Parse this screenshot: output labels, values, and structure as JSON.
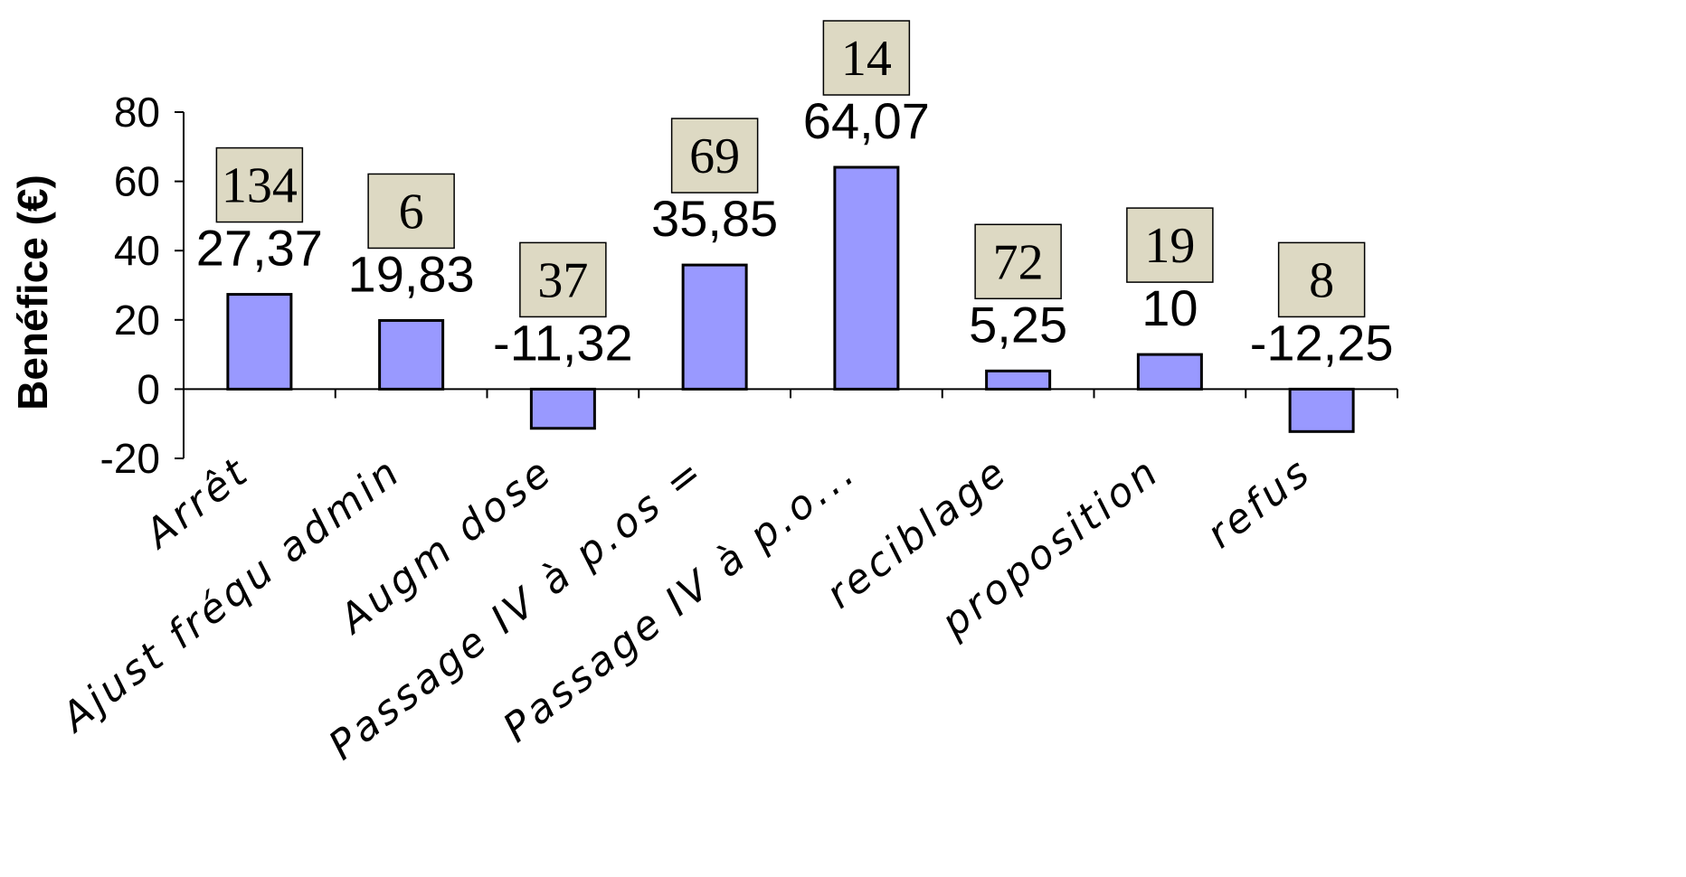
{
  "chart_data": {
    "type": "bar",
    "ylabel": "Benéfice (€)",
    "xlabel": "",
    "ylim": [
      -20,
      80
    ],
    "yticks": [
      "-20",
      "0",
      "20",
      "40",
      "60",
      "80"
    ],
    "categories": [
      "Arrêt",
      "Ajust fréqu admin",
      "Augm dose",
      "Passage IV à p.os =",
      "Passage IV à p.o...",
      "reciblage",
      "proposition",
      "refus"
    ],
    "values": [
      27.37,
      19.83,
      -11.32,
      35.85,
      64.07,
      5.25,
      10,
      -12.25
    ],
    "value_labels": [
      "27,37",
      "19,83",
      "-11,32",
      "35,85",
      "64,07",
      "5,25",
      "10",
      "-12,25"
    ],
    "box_labels": [
      "134",
      "6",
      "37",
      "69",
      "14",
      "72",
      "19",
      "8"
    ],
    "grid": false,
    "legend": "none",
    "colors": {
      "bar_fill": "#9999ff",
      "bar_stroke": "#000000",
      "box_fill": "#ddd9c3",
      "box_stroke": "#000000"
    }
  }
}
